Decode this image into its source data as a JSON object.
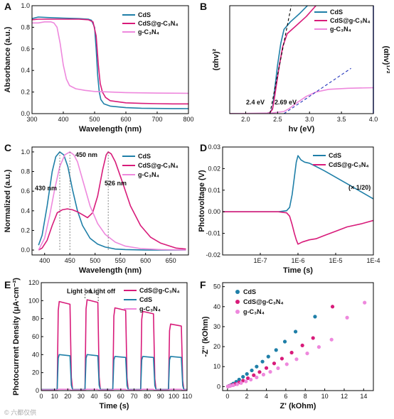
{
  "colors": {
    "cds": "#1f7fa8",
    "cds_cn": "#d81b7a",
    "gcn": "#ee88dd"
  },
  "watermark": "© 六都仅供",
  "chart_data": [
    {
      "panel": "A",
      "type": "line",
      "xlabel": "Wavelength (nm)",
      "ylabel": "Absorbance (a.u.)",
      "xlim": [
        300,
        800
      ],
      "ylim": [
        0.0,
        1.0
      ],
      "xticks": [
        "300",
        "400",
        "500",
        "600",
        "700",
        "800"
      ],
      "yticks": [
        "0.0",
        "0.2",
        "0.4",
        "0.6",
        "0.8",
        "1.0"
      ],
      "legend": [
        "CdS",
        "CdS@g-C₃N₄",
        "g-C₃N₄"
      ],
      "legend_position": "top-right",
      "series": [
        {
          "name": "CdS",
          "color": "cds",
          "x": [
            300,
            320,
            350,
            400,
            450,
            480,
            490,
            500,
            505,
            510,
            515,
            520,
            530,
            550,
            600,
            650,
            700,
            750,
            800
          ],
          "y": [
            0.88,
            0.895,
            0.89,
            0.885,
            0.88,
            0.875,
            0.865,
            0.8,
            0.6,
            0.35,
            0.2,
            0.13,
            0.09,
            0.07,
            0.055,
            0.05,
            0.048,
            0.047,
            0.046
          ]
        },
        {
          "name": "CdS@g-C₃N₄",
          "color": "cds_cn",
          "x": [
            300,
            320,
            350,
            400,
            450,
            480,
            495,
            505,
            512,
            518,
            525,
            535,
            550,
            600,
            650,
            700,
            750,
            800
          ],
          "y": [
            0.87,
            0.875,
            0.875,
            0.875,
            0.875,
            0.87,
            0.85,
            0.72,
            0.45,
            0.28,
            0.2,
            0.15,
            0.12,
            0.1,
            0.095,
            0.092,
            0.09,
            0.09
          ]
        },
        {
          "name": "g-C₃N₄",
          "color": "gcn",
          "x": [
            300,
            320,
            340,
            360,
            370,
            380,
            390,
            400,
            410,
            420,
            440,
            470,
            500,
            550,
            600,
            700,
            800
          ],
          "y": [
            0.84,
            0.84,
            0.85,
            0.85,
            0.84,
            0.8,
            0.65,
            0.45,
            0.32,
            0.26,
            0.23,
            0.215,
            0.205,
            0.2,
            0.195,
            0.19,
            0.188
          ]
        }
      ]
    },
    {
      "panel": "B",
      "type": "line",
      "xlabel": "hv (eV)",
      "ylabel": "(αhv)²",
      "ylabel_right": "(αhv)¹ᐟ²",
      "xlim": [
        1.75,
        4.0
      ],
      "xticks": [
        "2.0",
        "2.5",
        "3.0",
        "3.5",
        "4.0"
      ],
      "legend": [
        "CdS",
        "CdS@g-C₃N₄",
        "g-C₃N₄"
      ],
      "legend_position": "top-right",
      "annotations": [
        "2.4 eV",
        "2.69 eV"
      ],
      "series": [
        {
          "name": "CdS",
          "color": "cds",
          "x": [
            1.75,
            2.0,
            2.3,
            2.38,
            2.42,
            2.45,
            2.5,
            2.55,
            2.6,
            2.7,
            2.85,
            3.0
          ],
          "y": [
            0,
            0,
            0.0,
            0.01,
            0.05,
            0.2,
            0.45,
            0.65,
            0.78,
            0.85,
            0.93,
            1.02
          ]
        },
        {
          "name": "CdS@g-C₃N₄",
          "color": "cds_cn",
          "x": [
            1.75,
            2.0,
            2.3,
            2.38,
            2.42,
            2.46,
            2.52,
            2.58,
            2.65,
            2.8,
            2.95,
            3.1
          ],
          "y": [
            0,
            0,
            0.0,
            0.01,
            0.04,
            0.18,
            0.42,
            0.62,
            0.74,
            0.82,
            0.9,
            1.0
          ]
        },
        {
          "name": "g-C₃N₄",
          "color": "gcn",
          "x": [
            1.75,
            2.4,
            2.6,
            2.69,
            2.8,
            2.95,
            3.1,
            3.3,
            3.6,
            4.0
          ],
          "y": [
            0.0,
            0.005,
            0.02,
            0.05,
            0.1,
            0.16,
            0.2,
            0.225,
            0.235,
            0.24
          ]
        }
      ]
    },
    {
      "panel": "C",
      "type": "line",
      "xlabel": "Wavelength (nm)",
      "ylabel": "Normalized (a.u.)",
      "xlim": [
        375,
        685
      ],
      "ylim": [
        -0.05,
        1.05
      ],
      "xticks": [
        "400",
        "450",
        "500",
        "550",
        "600",
        "650"
      ],
      "yticks": [
        "0.0",
        "0.2",
        "0.4",
        "0.6",
        "0.8",
        "1.0"
      ],
      "legend": [
        "CdS",
        "CdS@g-C₃N₄",
        "g-C₃N₄"
      ],
      "legend_position": "top-right",
      "annotations": [
        "430 nm",
        "450 nm",
        "526 nm"
      ],
      "series": [
        {
          "name": "CdS",
          "color": "cds",
          "x": [
            388,
            395,
            405,
            415,
            422,
            430,
            438,
            446,
            455,
            465,
            475,
            490,
            505,
            520,
            540,
            560,
            600,
            680
          ],
          "y": [
            0.05,
            0.15,
            0.45,
            0.8,
            0.95,
            1.0,
            0.97,
            0.85,
            0.62,
            0.4,
            0.25,
            0.12,
            0.06,
            0.03,
            0.01,
            0.005,
            0,
            0
          ]
        },
        {
          "name": "CdS@g-C₃N₄",
          "color": "cds_cn",
          "x": [
            388,
            395,
            405,
            415,
            425,
            435,
            445,
            455,
            465,
            475,
            485,
            495,
            505,
            515,
            522,
            526,
            532,
            540,
            555,
            570,
            590,
            610,
            630,
            660,
            680
          ],
          "y": [
            0.0,
            0.02,
            0.1,
            0.25,
            0.38,
            0.41,
            0.42,
            0.41,
            0.39,
            0.36,
            0.33,
            0.38,
            0.55,
            0.82,
            0.97,
            1.0,
            0.98,
            0.9,
            0.68,
            0.45,
            0.25,
            0.13,
            0.07,
            0.02,
            0.01
          ]
        },
        {
          "name": "g-C₃N₄",
          "color": "gcn",
          "x": [
            388,
            400,
            410,
            420,
            430,
            440,
            450,
            458,
            465,
            475,
            490,
            505,
            520,
            540,
            560,
            590,
            630,
            680
          ],
          "y": [
            0.0,
            0.12,
            0.35,
            0.62,
            0.85,
            0.97,
            1.0,
            0.97,
            0.9,
            0.72,
            0.45,
            0.27,
            0.16,
            0.08,
            0.04,
            0.015,
            0.005,
            0
          ]
        }
      ]
    },
    {
      "panel": "D",
      "type": "line",
      "xlabel": "Time (s)",
      "ylabel": "Photovoltage (V)",
      "xscale": "log",
      "xlim": [
        1e-08,
        0.0001
      ],
      "ylim": [
        -0.02,
        0.03
      ],
      "xticks": [
        "1E-7",
        "1E-6",
        "1E-5",
        "1E-4"
      ],
      "yticks": [
        "-0.02",
        "-0.01",
        "0.00",
        "0.01",
        "0.02",
        "0.03"
      ],
      "legend": [
        "CdS",
        "CdS@g-C₃N₄"
      ],
      "legend_position": "top-right",
      "annotations": [
        "(× 1/20)"
      ],
      "series": [
        {
          "name": "CdS",
          "color": "cds",
          "x": [
            1e-08,
            1e-07,
            3e-07,
            5e-07,
            6e-07,
            7e-07,
            8e-07,
            9e-07,
            1e-06,
            1.2e-06,
            1.5e-06,
            2e-06,
            3e-06,
            5e-06,
            1e-05,
            2e-05,
            5e-05,
            0.0001
          ],
          "y": [
            0,
            0,
            0,
            0.0005,
            0.002,
            0.008,
            0.016,
            0.023,
            0.026,
            0.024,
            0.023,
            0.0225,
            0.021,
            0.019,
            0.016,
            0.013,
            0.009,
            0.006
          ]
        },
        {
          "name": "CdS@g-C₃N₄",
          "color": "cds_cn",
          "x": [
            1e-08,
            1e-07,
            3e-07,
            5e-07,
            6e-07,
            7e-07,
            8e-07,
            9e-07,
            1e-06,
            1.3e-06,
            2e-06,
            3e-06,
            5e-06,
            1e-05,
            2e-05,
            5e-05,
            0.0001
          ],
          "y": [
            0,
            0,
            0,
            -0.0005,
            -0.002,
            -0.006,
            -0.01,
            -0.013,
            -0.015,
            -0.014,
            -0.013,
            -0.0125,
            -0.011,
            -0.009,
            -0.007,
            -0.0055,
            -0.004
          ]
        }
      ]
    },
    {
      "panel": "E",
      "type": "line",
      "xlabel": "Time (s)",
      "ylabel": "Photocurrent Density (μA·cm⁻²)",
      "xlim": [
        0,
        110
      ],
      "ylim": [
        0,
        120
      ],
      "xticks": [
        "0",
        "10",
        "20",
        "30",
        "40",
        "50",
        "60",
        "70",
        "80",
        "90",
        "100",
        "110"
      ],
      "yticks": [
        "0",
        "20",
        "40",
        "60",
        "80",
        "100",
        "120"
      ],
      "legend": [
        "CdS@g-C₃N₄",
        "CdS",
        "g-C₃N₄"
      ],
      "legend_position": "top-right",
      "annotations": [
        "Light on",
        "Light off"
      ],
      "on_intervals": [
        [
          12,
          22
        ],
        [
          33,
          43
        ],
        [
          54,
          64
        ],
        [
          75,
          85
        ],
        [
          96,
          106
        ]
      ],
      "series": [
        {
          "name": "CdS@g-C₃N₄",
          "color": "cds_cn",
          "plateau": [
            99,
            101,
            92,
            88,
            74
          ]
        },
        {
          "name": "CdS",
          "color": "cds",
          "plateau": [
            40,
            40,
            38,
            38,
            38
          ]
        },
        {
          "name": "g-C₃N₄",
          "color": "gcn",
          "plateau": [
            1.5,
            1.5,
            1.5,
            1.5,
            1.5
          ]
        }
      ]
    },
    {
      "panel": "F",
      "type": "scatter",
      "xlabel": "Z' (kOhm)",
      "ylabel": "-Z'' (kOhm)",
      "xlim": [
        -0.5,
        15
      ],
      "ylim": [
        -2,
        52
      ],
      "xticks": [
        "0",
        "2",
        "4",
        "6",
        "8",
        "10",
        "12",
        "14"
      ],
      "yticks": [
        "0",
        "10",
        "20",
        "30",
        "40",
        "50"
      ],
      "legend": [
        "CdS",
        "CdS@g-C₃N₄",
        "g-C₃N₄"
      ],
      "legend_position": "top-left",
      "series": [
        {
          "name": "CdS",
          "color": "cds",
          "x": [
            0.05,
            0.2,
            0.4,
            0.6,
            0.9,
            1.2,
            1.6,
            2.0,
            2.5,
            3.0,
            3.6,
            4.2,
            5.0,
            5.9,
            7.0,
            9.0
          ],
          "y": [
            0.1,
            0.4,
            0.9,
            1.5,
            2.4,
            3.5,
            4.9,
            6.3,
            8.1,
            10.0,
            12.5,
            15.0,
            18.3,
            22.5,
            27.5,
            35
          ]
        },
        {
          "name": "CdS@g-C₃N₄",
          "color": "cds_cn",
          "x": [
            0.05,
            0.25,
            0.5,
            0.8,
            1.2,
            1.6,
            2.1,
            2.7,
            3.3,
            4.0,
            4.8,
            5.6,
            6.6,
            7.7,
            8.8,
            10.8
          ],
          "y": [
            0.1,
            0.4,
            0.8,
            1.3,
            2.1,
            3.0,
            4.2,
            5.7,
            7.3,
            9.3,
            11.6,
            14.0,
            17.0,
            20.6,
            24.3,
            40
          ]
        },
        {
          "name": "g-C₃N₄",
          "color": "gcn",
          "x": [
            0.05,
            0.3,
            0.6,
            1.0,
            1.4,
            1.9,
            2.4,
            3.0,
            3.7,
            4.4,
            5.2,
            6.1,
            7.1,
            8.2,
            9.4,
            10.7,
            12.3,
            14.1
          ],
          "y": [
            0.1,
            0.4,
            0.7,
            1.2,
            1.8,
            2.6,
            3.5,
            4.6,
            6.0,
            7.4,
            9.2,
            11.2,
            13.7,
            16.6,
            19.8,
            23.5,
            34.5,
            42
          ]
        }
      ]
    }
  ]
}
